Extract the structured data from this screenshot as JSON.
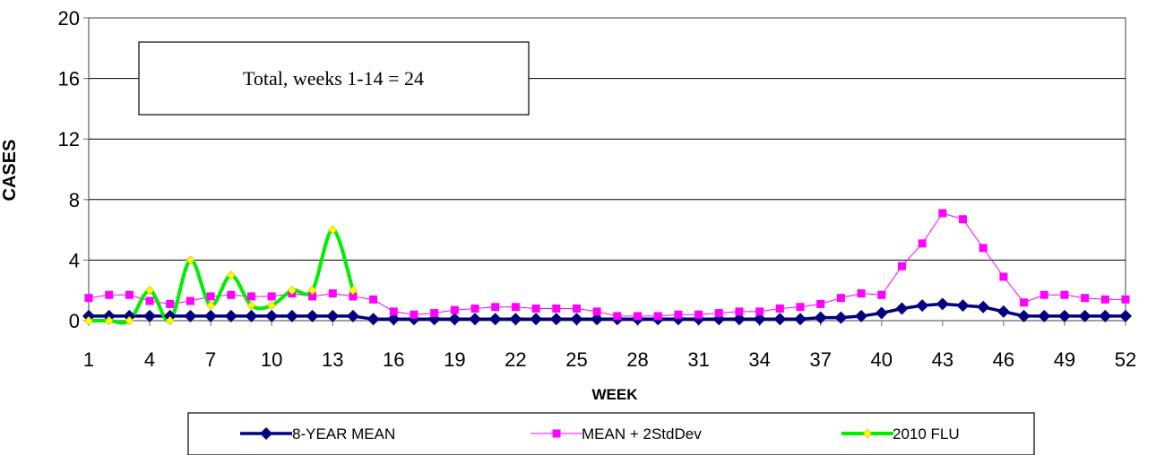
{
  "chart_data": {
    "type": "line",
    "title": "",
    "xlabel": "WEEK",
    "ylabel": "CASES",
    "ylim": [
      0,
      20
    ],
    "yticks": [
      "0",
      "4",
      "8",
      "12",
      "16",
      "20"
    ],
    "xticks": [
      "1",
      "4",
      "7",
      "10",
      "13",
      "16",
      "19",
      "22",
      "25",
      "28",
      "31",
      "34",
      "37",
      "40",
      "43",
      "46",
      "49",
      "52"
    ],
    "xlim": [
      1,
      52
    ],
    "grid": "horizontal",
    "annotation": "Total, weeks 1-14 = 24",
    "legend_position": "bottom",
    "series": [
      {
        "name": "8-YEAR MEAN",
        "color": "#000080",
        "marker": "diamond",
        "x": [
          1,
          2,
          3,
          4,
          5,
          6,
          7,
          8,
          9,
          10,
          11,
          12,
          13,
          14,
          15,
          16,
          17,
          18,
          19,
          20,
          21,
          22,
          23,
          24,
          25,
          26,
          27,
          28,
          29,
          30,
          31,
          32,
          33,
          34,
          35,
          36,
          37,
          38,
          39,
          40,
          41,
          42,
          43,
          44,
          45,
          46,
          47,
          48,
          49,
          50,
          51,
          52
        ],
        "values": [
          0.3,
          0.3,
          0.3,
          0.3,
          0.3,
          0.3,
          0.3,
          0.3,
          0.3,
          0.3,
          0.3,
          0.3,
          0.3,
          0.3,
          0.1,
          0.1,
          0.1,
          0.1,
          0.1,
          0.1,
          0.1,
          0.1,
          0.1,
          0.1,
          0.1,
          0.1,
          0.1,
          0.1,
          0.1,
          0.1,
          0.1,
          0.1,
          0.1,
          0.1,
          0.1,
          0.1,
          0.2,
          0.2,
          0.3,
          0.5,
          0.8,
          1.0,
          1.1,
          1.0,
          0.9,
          0.6,
          0.3,
          0.3,
          0.3,
          0.3,
          0.3,
          0.3
        ]
      },
      {
        "name": "MEAN + 2StdDev",
        "color": "#ff00ff",
        "marker": "square",
        "x": [
          1,
          2,
          3,
          4,
          5,
          6,
          7,
          8,
          9,
          10,
          11,
          12,
          13,
          14,
          15,
          16,
          17,
          18,
          19,
          20,
          21,
          22,
          23,
          24,
          25,
          26,
          27,
          28,
          29,
          30,
          31,
          32,
          33,
          34,
          35,
          36,
          37,
          38,
          39,
          40,
          41,
          42,
          43,
          44,
          45,
          46,
          47,
          48,
          49,
          50,
          51,
          52
        ],
        "values": [
          1.5,
          1.7,
          1.7,
          1.3,
          1.1,
          1.3,
          1.6,
          1.7,
          1.6,
          1.6,
          1.8,
          1.6,
          1.8,
          1.6,
          1.4,
          0.6,
          0.4,
          0.5,
          0.7,
          0.8,
          0.9,
          0.9,
          0.8,
          0.8,
          0.8,
          0.6,
          0.3,
          0.3,
          0.3,
          0.4,
          0.4,
          0.5,
          0.6,
          0.6,
          0.8,
          0.9,
          1.1,
          1.5,
          1.8,
          1.7,
          3.6,
          5.1,
          7.1,
          6.7,
          4.8,
          2.9,
          1.2,
          1.7,
          1.7,
          1.5,
          1.4,
          1.4
        ]
      },
      {
        "name": "2010  FLU",
        "color": "#00ee00",
        "marker_color": "#ffff00",
        "marker": "diamond",
        "x": [
          1,
          2,
          3,
          4,
          5,
          6,
          7,
          8,
          9,
          10,
          11,
          12,
          13,
          14
        ],
        "values": [
          0,
          0,
          0,
          2,
          0,
          4,
          1,
          3,
          1,
          1,
          2,
          2,
          6,
          2
        ]
      }
    ]
  }
}
